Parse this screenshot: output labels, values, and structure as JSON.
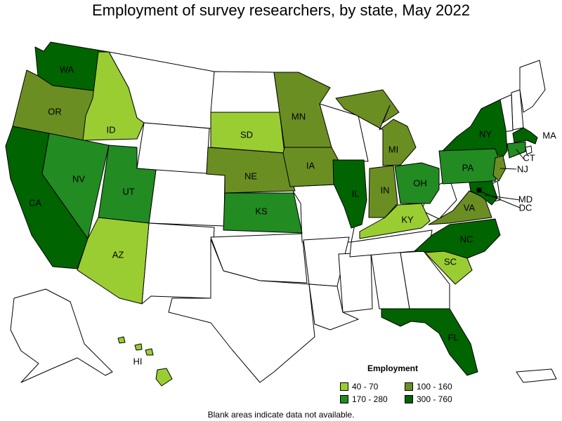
{
  "title": "Employment of survey researchers, by state, May 2022",
  "legend": {
    "title": "Employment",
    "items": [
      {
        "label": "40 - 70",
        "color": "#9acd32"
      },
      {
        "label": "100 - 160",
        "color": "#6b8e23"
      },
      {
        "label": "170 - 280",
        "color": "#228b22"
      },
      {
        "label": "300 - 760",
        "color": "#006400"
      }
    ]
  },
  "footnote": "Blank areas indicate data not available.",
  "states": [
    {
      "abbr": "WA",
      "bin": "300 - 760"
    },
    {
      "abbr": "OR",
      "bin": "100 - 160"
    },
    {
      "abbr": "CA",
      "bin": "300 - 760"
    },
    {
      "abbr": "ID",
      "bin": "40 - 70"
    },
    {
      "abbr": "NV",
      "bin": "170 - 280"
    },
    {
      "abbr": "UT",
      "bin": "170 - 280"
    },
    {
      "abbr": "AZ",
      "bin": "40 - 70"
    },
    {
      "abbr": "SD",
      "bin": "40 - 70"
    },
    {
      "abbr": "NE",
      "bin": "100 - 160"
    },
    {
      "abbr": "KS",
      "bin": "170 - 280"
    },
    {
      "abbr": "MN",
      "bin": "100 - 160"
    },
    {
      "abbr": "IA",
      "bin": "100 - 160"
    },
    {
      "abbr": "IL",
      "bin": "300 - 760"
    },
    {
      "abbr": "MI",
      "bin": "100 - 160"
    },
    {
      "abbr": "IN",
      "bin": "100 - 160"
    },
    {
      "abbr": "OH",
      "bin": "170 - 280"
    },
    {
      "abbr": "KY",
      "bin": "40 - 70"
    },
    {
      "abbr": "NY",
      "bin": "300 - 760"
    },
    {
      "abbr": "PA",
      "bin": "170 - 280"
    },
    {
      "abbr": "VA",
      "bin": "100 - 160"
    },
    {
      "abbr": "NC",
      "bin": "300 - 760"
    },
    {
      "abbr": "SC",
      "bin": "40 - 70"
    },
    {
      "abbr": "FL",
      "bin": "300 - 760"
    },
    {
      "abbr": "HI",
      "bin": "40 - 70"
    },
    {
      "abbr": "MA",
      "bin": "300 - 760"
    },
    {
      "abbr": "CT",
      "bin": "170 - 280"
    },
    {
      "abbr": "NJ",
      "bin": "100 - 160"
    },
    {
      "abbr": "MD",
      "bin": "300 - 760"
    },
    {
      "abbr": "DC",
      "bin": "300 - 760"
    }
  ]
}
